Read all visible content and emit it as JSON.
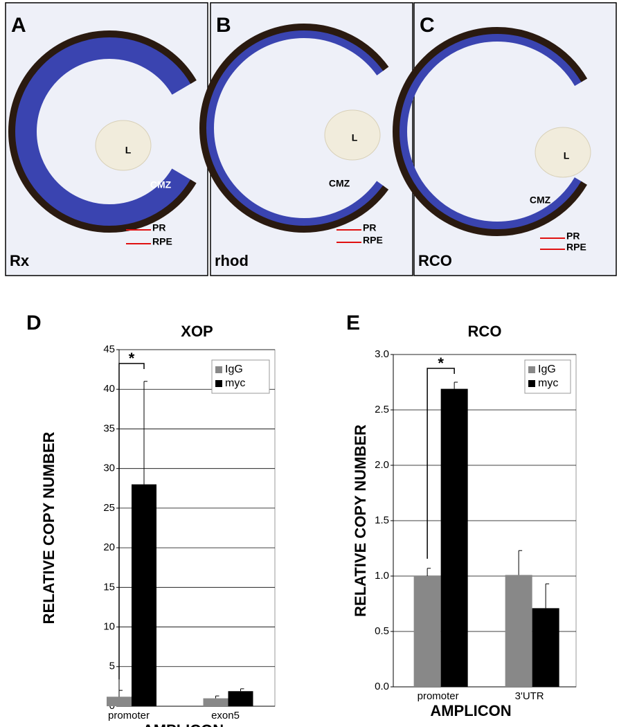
{
  "image_panels": [
    {
      "label": "A",
      "gene": "Rx",
      "markers": [
        "L",
        "CMZ",
        "PR",
        "RPE"
      ]
    },
    {
      "label": "B",
      "gene": "rhod",
      "markers": [
        "L",
        "CMZ",
        "PR",
        "RPE"
      ]
    },
    {
      "label": "C",
      "gene": "RCO",
      "markers": [
        "L",
        "CMZ",
        "PR",
        "RPE"
      ]
    }
  ],
  "chart_data": [
    {
      "type": "bar",
      "label": "D",
      "title": "XOP",
      "ylabel": "RELATIVE COPY NUMBER",
      "xlabel": "AMPLICON",
      "categories": [
        "promoter",
        "exon5"
      ],
      "series": [
        {
          "name": "IgG",
          "color": "#888888",
          "values": [
            1.2,
            1.0
          ],
          "errors": [
            0.8,
            0.3
          ]
        },
        {
          "name": "myc",
          "color": "#000000",
          "values": [
            28,
            1.9
          ],
          "errors": [
            13,
            0.3
          ]
        }
      ],
      "ylim": [
        0,
        45
      ],
      "yticks": [
        0,
        5,
        10,
        15,
        20,
        25,
        30,
        35,
        40,
        45
      ],
      "grid": true,
      "legend": "upper right",
      "annotation": "*"
    },
    {
      "type": "bar",
      "label": "E",
      "title": "RCO",
      "ylabel": "RELATIVE COPY NUMBER",
      "xlabel": "AMPLICON",
      "categories": [
        "promoter",
        "3'UTR"
      ],
      "series": [
        {
          "name": "IgG",
          "color": "#888888",
          "values": [
            1.0,
            1.01
          ],
          "errors": [
            0.07,
            0.22
          ]
        },
        {
          "name": "myc",
          "color": "#000000",
          "values": [
            2.69,
            0.71
          ],
          "errors": [
            0.06,
            0.22
          ]
        }
      ],
      "ylim": [
        0,
        3.0
      ],
      "yticks": [
        {
          "value": 0,
          "label": "0.0"
        },
        {
          "value": 0.5,
          "label": "0.5"
        },
        {
          "value": 1.0,
          "label": "1.0"
        },
        {
          "value": 1.5,
          "label": "1.5"
        },
        {
          "value": 2.0,
          "label": "2.0"
        },
        {
          "value": 2.5,
          "label": "2.5"
        },
        {
          "value": 3.0,
          "label": "3.0"
        }
      ],
      "grid": true,
      "legend": "upper right",
      "annotation": "*"
    }
  ]
}
